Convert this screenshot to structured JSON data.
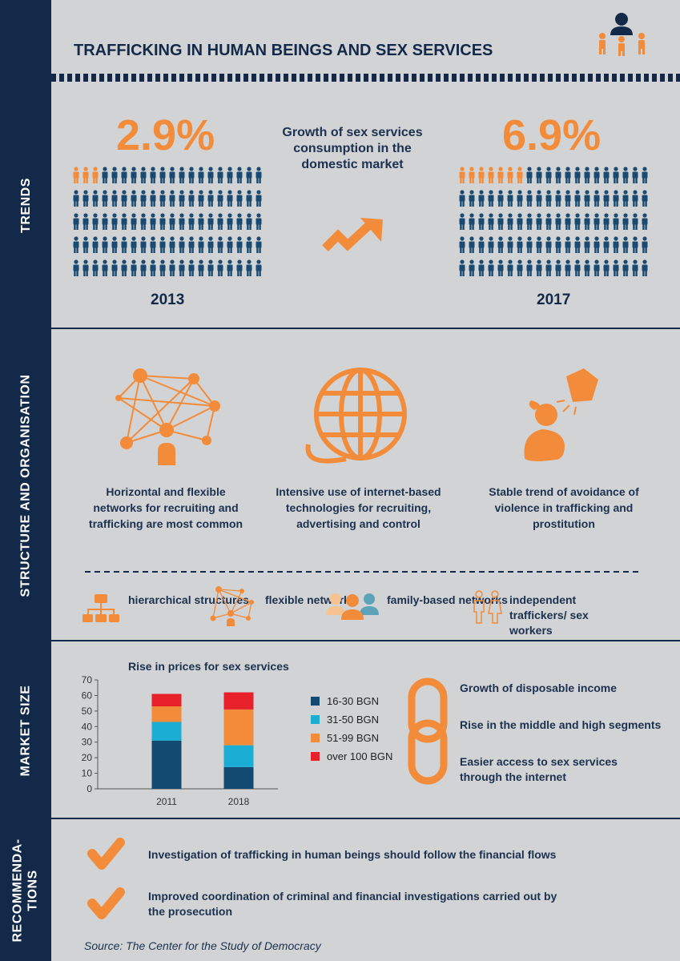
{
  "title": "TRAFFICKING IN HUMAN BEINGS AND SEX SERVICES",
  "sections": {
    "trends": "TRENDS",
    "structure": "STRUCTURE AND ORGANISATION",
    "market": "MARKET SIZE",
    "recommendations": "RECOMMENDA-\nTIONS"
  },
  "trends": {
    "left_pct": "2.9%",
    "right_pct": "6.9%",
    "middle_text": "Growth of sex services consumption in the domestic market",
    "left_year": "2013",
    "right_year": "2017",
    "left_highlight": 3,
    "right_highlight": 7,
    "grid_rows": 5,
    "grid_cols": 20
  },
  "structure": {
    "items": [
      {
        "icon": "network-icon",
        "text": "Horizontal and flexible networks for recruiting and trafficking are most common"
      },
      {
        "icon": "globe-icon",
        "text": "Intensive use of internet-based technologies for recruiting, advertising and control"
      },
      {
        "icon": "victim-icon",
        "text": "Stable trend of avoidance of violence in trafficking and prostitution"
      }
    ],
    "legend": [
      {
        "icon": "hierarchy-icon",
        "text": "hierarchical structures"
      },
      {
        "icon": "network-icon",
        "text": "flexible networks"
      },
      {
        "icon": "family-icon",
        "text": "family-based networks"
      },
      {
        "icon": "independent-icon",
        "text": "independent traffickers/ sex workers"
      }
    ]
  },
  "market": {
    "factors": [
      "Growth of disposable income",
      "Rise in the middle and high segments",
      "Easier access to sex services through the internet"
    ]
  },
  "chart_data": {
    "type": "bar",
    "title": "Rise in prices for sex services",
    "categories": [
      "2011",
      "2018"
    ],
    "stacked": true,
    "series": [
      {
        "name": "16-30 BGN",
        "color": "#124a72",
        "values": [
          31,
          14
        ]
      },
      {
        "name": "31-50 BGN",
        "color": "#1aaed4",
        "values": [
          12,
          14
        ]
      },
      {
        "name": "51-99 BGN",
        "color": "#f28c3a",
        "values": [
          10,
          23
        ]
      },
      {
        "name": "over 100 BGN",
        "color": "#e8202a",
        "values": [
          8,
          11
        ]
      }
    ],
    "ylim": [
      0,
      70
    ],
    "yticks": [
      0,
      10,
      20,
      30,
      40,
      50,
      60,
      70
    ],
    "legend_position": "right"
  },
  "recommendations": [
    "Investigation of trafficking in human beings should follow the financial flows",
    "Improved coordination of criminal and financial investigations carried out by the prosecution"
  ],
  "source": "Source: The Center for the Study of Democracy",
  "colors": {
    "orange": "#f28c3a",
    "navy": "#12294a",
    "blue": "#1a4a72",
    "background": "#d1d3d4"
  }
}
